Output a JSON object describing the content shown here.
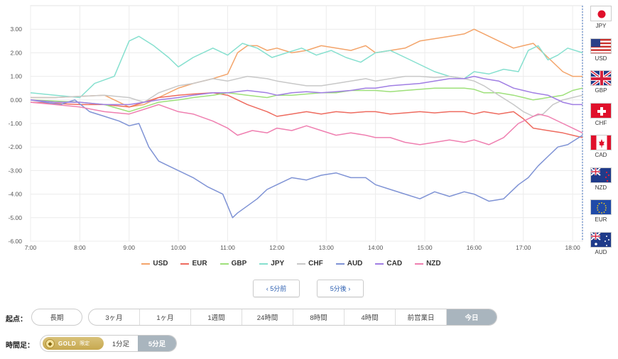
{
  "chart_data": {
    "type": "line",
    "x_ticks": [
      "7:00",
      "8:00",
      "9:00",
      "10:00",
      "11:00",
      "12:00",
      "13:00",
      "14:00",
      "15:00",
      "16:00",
      "17:00",
      "18:00"
    ],
    "y_ticks": [
      "3.00",
      "2.00",
      "1.00",
      "0.00",
      "-1.00",
      "-2.00",
      "-3.00",
      "-4.00",
      "-5.00",
      "-6.00"
    ],
    "xlim": [
      7.0,
      18.2
    ],
    "ylim": [
      -6.0,
      4.0
    ],
    "grid": true,
    "legend_position": "bottom",
    "series": [
      {
        "name": "USD",
        "color": "#f3a46a",
        "x": [
          7.0,
          7.5,
          8.0,
          8.5,
          9.0,
          9.3,
          9.6,
          10.0,
          10.3,
          10.7,
          11.0,
          11.2,
          11.4,
          11.6,
          11.8,
          12.0,
          12.3,
          12.6,
          12.9,
          13.2,
          13.5,
          13.8,
          14.0,
          14.3,
          14.6,
          14.9,
          15.2,
          15.5,
          15.8,
          16.0,
          16.2,
          16.5,
          16.8,
          17.0,
          17.2,
          17.5,
          17.8,
          18.0,
          18.2
        ],
        "y": [
          0.1,
          0.1,
          0.15,
          0.2,
          -0.3,
          -0.2,
          0.1,
          0.5,
          0.7,
          0.9,
          1.1,
          2.0,
          2.3,
          2.3,
          2.1,
          2.2,
          2.0,
          2.1,
          2.3,
          2.2,
          2.1,
          2.3,
          2.0,
          2.1,
          2.2,
          2.5,
          2.6,
          2.7,
          2.8,
          3.0,
          2.8,
          2.5,
          2.2,
          2.3,
          2.4,
          1.8,
          1.2,
          1.0,
          1.0
        ]
      },
      {
        "name": "EUR",
        "color": "#ee6b5f",
        "x": [
          7.0,
          7.5,
          8.0,
          8.5,
          9.0,
          9.3,
          9.6,
          10.0,
          10.3,
          10.7,
          11.0,
          11.4,
          11.8,
          12.0,
          12.3,
          12.6,
          12.9,
          13.2,
          13.5,
          13.8,
          14.0,
          14.3,
          14.6,
          14.9,
          15.2,
          15.5,
          15.8,
          16.0,
          16.2,
          16.5,
          16.8,
          17.0,
          17.2,
          17.5,
          17.8,
          18.0,
          18.2
        ],
        "y": [
          -0.1,
          -0.15,
          -0.2,
          -0.2,
          -0.3,
          -0.1,
          0.1,
          0.2,
          0.25,
          0.3,
          0.2,
          -0.2,
          -0.5,
          -0.7,
          -0.6,
          -0.5,
          -0.6,
          -0.5,
          -0.55,
          -0.5,
          -0.5,
          -0.6,
          -0.55,
          -0.5,
          -0.55,
          -0.5,
          -0.5,
          -0.6,
          -0.5,
          -0.6,
          -0.5,
          -0.8,
          -1.2,
          -1.3,
          -1.4,
          -1.5,
          -1.6
        ]
      },
      {
        "name": "GBP",
        "color": "#9ee07a",
        "x": [
          7.0,
          7.5,
          8.0,
          8.5,
          9.0,
          9.3,
          9.6,
          10.0,
          10.3,
          10.7,
          11.0,
          11.4,
          11.8,
          12.0,
          12.3,
          12.6,
          12.9,
          13.2,
          13.5,
          13.8,
          14.0,
          14.3,
          14.6,
          14.9,
          15.2,
          15.5,
          15.8,
          16.0,
          16.2,
          16.5,
          16.8,
          17.0,
          17.2,
          17.5,
          17.8,
          18.0,
          18.2
        ],
        "y": [
          0.0,
          -0.05,
          -0.1,
          -0.2,
          -0.5,
          -0.3,
          -0.1,
          0.0,
          0.1,
          0.2,
          0.3,
          0.2,
          0.1,
          0.2,
          0.2,
          0.25,
          0.3,
          0.3,
          0.4,
          0.4,
          0.4,
          0.35,
          0.4,
          0.45,
          0.5,
          0.5,
          0.5,
          0.45,
          0.3,
          0.3,
          0.2,
          0.1,
          0.0,
          0.1,
          0.2,
          0.4,
          0.5
        ]
      },
      {
        "name": "JPY",
        "color": "#86e0cf",
        "x": [
          7.0,
          7.5,
          8.0,
          8.3,
          8.7,
          9.0,
          9.2,
          9.5,
          9.8,
          10.0,
          10.3,
          10.7,
          11.0,
          11.3,
          11.6,
          11.9,
          12.2,
          12.5,
          12.8,
          13.1,
          13.4,
          13.7,
          14.0,
          14.3,
          14.6,
          14.9,
          15.2,
          15.5,
          15.8,
          16.0,
          16.3,
          16.6,
          16.9,
          17.1,
          17.3,
          17.5,
          17.7,
          17.9,
          18.2
        ],
        "y": [
          0.3,
          0.2,
          0.1,
          0.7,
          1.0,
          2.5,
          2.7,
          2.3,
          1.8,
          1.4,
          1.8,
          2.2,
          1.9,
          2.4,
          2.2,
          1.8,
          2.0,
          2.2,
          1.9,
          2.1,
          1.8,
          1.6,
          2.0,
          2.1,
          1.8,
          1.5,
          1.2,
          1.0,
          0.9,
          1.2,
          1.1,
          1.3,
          1.2,
          2.1,
          2.3,
          1.7,
          1.9,
          2.2,
          2.0
        ]
      },
      {
        "name": "CHF",
        "color": "#c8c8c8",
        "x": [
          7.0,
          7.5,
          8.0,
          8.5,
          9.0,
          9.3,
          9.6,
          10.0,
          10.3,
          10.7,
          11.0,
          11.4,
          11.8,
          12.0,
          12.3,
          12.6,
          12.9,
          13.2,
          13.5,
          13.8,
          14.0,
          14.3,
          14.6,
          14.9,
          15.2,
          15.5,
          15.8,
          16.0,
          16.2,
          16.5,
          16.8,
          17.0,
          17.2,
          17.4,
          17.6,
          17.8,
          18.0,
          18.2
        ],
        "y": [
          0.1,
          0.1,
          0.15,
          0.2,
          0.1,
          -0.1,
          0.3,
          0.6,
          0.7,
          0.9,
          0.8,
          1.0,
          0.9,
          0.8,
          0.7,
          0.6,
          0.6,
          0.7,
          0.8,
          0.9,
          0.8,
          0.9,
          1.0,
          1.0,
          0.95,
          1.0,
          0.9,
          0.8,
          0.6,
          0.2,
          -0.2,
          -0.5,
          -0.7,
          -0.6,
          -0.2,
          0.0,
          0.1,
          0.2
        ]
      },
      {
        "name": "AUD",
        "color": "#7f93d5",
        "x": [
          7.0,
          7.3,
          7.6,
          7.9,
          8.2,
          8.5,
          8.8,
          9.0,
          9.2,
          9.4,
          9.6,
          9.8,
          10.0,
          10.3,
          10.6,
          10.9,
          11.0,
          11.1,
          11.2,
          11.4,
          11.6,
          11.8,
          12.0,
          12.3,
          12.6,
          12.9,
          13.2,
          13.5,
          13.8,
          14.0,
          14.3,
          14.6,
          14.9,
          15.2,
          15.5,
          15.8,
          16.0,
          16.3,
          16.6,
          16.9,
          17.1,
          17.3,
          17.5,
          17.7,
          17.9,
          18.2
        ],
        "y": [
          0.0,
          -0.1,
          -0.2,
          0.0,
          -0.5,
          -0.7,
          -0.9,
          -1.1,
          -1.0,
          -2.0,
          -2.6,
          -2.8,
          -3.0,
          -3.3,
          -3.7,
          -4.0,
          -4.5,
          -5.0,
          -4.8,
          -4.5,
          -4.2,
          -3.8,
          -3.6,
          -3.3,
          -3.4,
          -3.2,
          -3.1,
          -3.3,
          -3.3,
          -3.6,
          -3.8,
          -4.0,
          -4.2,
          -3.9,
          -4.1,
          -3.9,
          -4.0,
          -4.3,
          -4.2,
          -3.6,
          -3.3,
          -2.8,
          -2.4,
          -2.0,
          -1.9,
          -1.5
        ]
      },
      {
        "name": "CAD",
        "color": "#a07ee3",
        "x": [
          7.0,
          7.5,
          8.0,
          8.5,
          9.0,
          9.3,
          9.6,
          10.0,
          10.3,
          10.7,
          11.0,
          11.4,
          11.8,
          12.0,
          12.3,
          12.6,
          12.9,
          13.2,
          13.5,
          13.8,
          14.0,
          14.3,
          14.6,
          14.9,
          15.2,
          15.5,
          15.8,
          16.0,
          16.2,
          16.5,
          16.8,
          17.0,
          17.2,
          17.5,
          17.8,
          18.0,
          18.2
        ],
        "y": [
          0.0,
          -0.1,
          -0.1,
          -0.2,
          -0.2,
          -0.1,
          0.0,
          0.1,
          0.2,
          0.3,
          0.3,
          0.4,
          0.3,
          0.2,
          0.3,
          0.35,
          0.3,
          0.35,
          0.4,
          0.5,
          0.5,
          0.6,
          0.65,
          0.7,
          0.8,
          0.9,
          0.9,
          1.0,
          0.9,
          0.8,
          0.5,
          0.4,
          0.3,
          0.2,
          -0.1,
          -0.2,
          -0.2
        ]
      },
      {
        "name": "NZD",
        "color": "#ef7fb0",
        "x": [
          7.0,
          7.5,
          8.0,
          8.5,
          9.0,
          9.3,
          9.6,
          10.0,
          10.3,
          10.7,
          11.0,
          11.2,
          11.5,
          11.8,
          12.0,
          12.3,
          12.6,
          12.9,
          13.2,
          13.5,
          13.8,
          14.0,
          14.3,
          14.6,
          14.9,
          15.2,
          15.5,
          15.8,
          16.0,
          16.3,
          16.6,
          16.9,
          17.1,
          17.3,
          17.5,
          17.8,
          18.0,
          18.2
        ],
        "y": [
          -0.1,
          -0.2,
          -0.3,
          -0.5,
          -0.6,
          -0.4,
          -0.2,
          -0.5,
          -0.6,
          -0.9,
          -1.2,
          -1.5,
          -1.3,
          -1.4,
          -1.2,
          -1.3,
          -1.1,
          -1.3,
          -1.5,
          -1.4,
          -1.5,
          -1.6,
          -1.6,
          -1.8,
          -1.9,
          -1.8,
          -1.7,
          -1.8,
          -1.7,
          -1.9,
          -1.6,
          -1.0,
          -0.8,
          -0.6,
          -0.7,
          -1.0,
          -1.2,
          -1.4
        ]
      }
    ]
  },
  "flags": [
    {
      "code": "JPY",
      "icon": "japan-flag-icon"
    },
    {
      "code": "USD",
      "icon": "usa-flag-icon"
    },
    {
      "code": "GBP",
      "icon": "uk-flag-icon"
    },
    {
      "code": "CHF",
      "icon": "swiss-flag-icon"
    },
    {
      "code": "CAD",
      "icon": "canada-flag-icon"
    },
    {
      "code": "NZD",
      "icon": "nz-flag-icon"
    },
    {
      "code": "EUR",
      "icon": "eu-flag-icon"
    },
    {
      "code": "AUD",
      "icon": "australia-flag-icon"
    }
  ],
  "nav": {
    "prev": "‹ 5分前",
    "next": "5分後 ›"
  },
  "range": {
    "label": "起点：",
    "long": "長期",
    "options": [
      "3ヶ月",
      "1ヶ月",
      "1週間",
      "24時間",
      "8時間",
      "4時間",
      "前営業日",
      "今日"
    ],
    "active": "今日"
  },
  "ashi": {
    "label": "時間足：",
    "gold_text": "GOLD",
    "gold_tag": "限定",
    "options": [
      "1分足",
      "5分足"
    ],
    "active": "5分足"
  }
}
